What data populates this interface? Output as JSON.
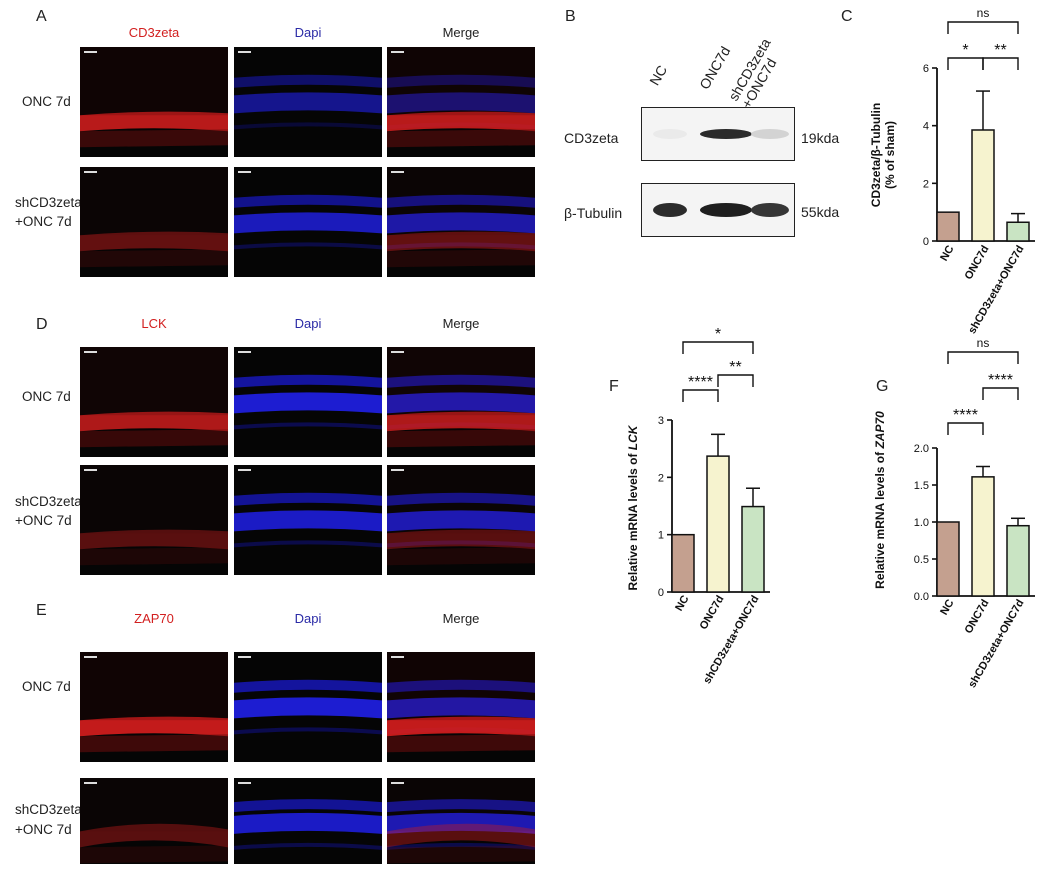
{
  "panels": {
    "A": "A",
    "B": "B",
    "C": "C",
    "D": "D",
    "E": "E",
    "F": "F",
    "G": "G"
  },
  "if_panels": [
    {
      "id": "A",
      "stain": "CD3zeta",
      "dapi": "Dapi",
      "merge": "Merge",
      "rows": [
        {
          "label1": "ONC 7d",
          "label2": "",
          "red_level": 0.85,
          "blue_level": 0.6
        },
        {
          "label1": "shCD3zeta",
          "label2": "+ONC 7d",
          "red_level": 0.45,
          "blue_level": 0.8
        }
      ]
    },
    {
      "id": "D",
      "stain": "LCK",
      "dapi": "Dapi",
      "merge": "Merge",
      "rows": [
        {
          "label1": "ONC 7d",
          "label2": "",
          "red_level": 0.8,
          "blue_level": 0.9
        },
        {
          "label1": "shCD3zeta",
          "label2": "+ONC 7d",
          "red_level": 0.4,
          "blue_level": 0.85
        }
      ]
    },
    {
      "id": "E",
      "stain": "ZAP70",
      "dapi": "Dapi",
      "merge": "Merge",
      "rows": [
        {
          "label1": "ONC 7d",
          "label2": "",
          "red_level": 0.9,
          "blue_level": 0.9
        },
        {
          "label1": "shCD3zeta",
          "label2": "+ONC 7d",
          "red_level": 0.4,
          "blue_level": 0.85
        }
      ]
    }
  ],
  "blot": {
    "lanes": [
      "NC",
      "ONC7d",
      "shCD3zeta",
      "+ONC7d"
    ],
    "bands": [
      {
        "protein": "CD3zeta",
        "size": "19kda",
        "intensities": [
          0.05,
          0.9,
          0.15
        ]
      },
      {
        "protein": "β-Tubulin",
        "size": "55kda",
        "intensities": [
          0.9,
          0.95,
          0.85
        ]
      }
    ]
  },
  "colors": {
    "nc": "#c4a08f",
    "onc": "#f6f3cf",
    "sh": "#c9e4c3",
    "red_stain": "#d21f1f",
    "dapi_blue": "#2a2aa6"
  },
  "chart_data": [
    {
      "id": "C",
      "type": "bar",
      "categories": [
        "NC",
        "ONC7d",
        "shCD3zeta+ONC7d"
      ],
      "values": [
        1.0,
        3.85,
        0.65
      ],
      "errors": [
        0,
        1.35,
        0.3
      ],
      "ylabel1": "CD3zeta/β-Tubulin",
      "ylabel2": "(% of sham)",
      "ylim": [
        0,
        6
      ],
      "yticks": [
        "0",
        "2",
        "4",
        "6"
      ],
      "significance": [
        {
          "label": "*",
          "from": 0,
          "to": 1
        },
        {
          "label": "**",
          "from": 1,
          "to": 2
        },
        {
          "label": "ns",
          "from": 0,
          "to": 2
        }
      ]
    },
    {
      "id": "F",
      "type": "bar",
      "categories": [
        "NC",
        "ONC7d",
        "shCD3zeta+ONC7d"
      ],
      "values": [
        1.0,
        2.37,
        1.49
      ],
      "errors": [
        0,
        0.38,
        0.32
      ],
      "ylabel_prefix": "Relative mRNA levels of ",
      "ylabel_gene": "LCK",
      "ylim": [
        0,
        3
      ],
      "yticks": [
        "0",
        "1",
        "2",
        "3"
      ],
      "significance": [
        {
          "label": "****",
          "from": 0,
          "to": 1
        },
        {
          "label": "**",
          "from": 1,
          "to": 2
        },
        {
          "label": "*",
          "from": 0,
          "to": 2
        }
      ]
    },
    {
      "id": "G",
      "type": "bar",
      "categories": [
        "NC",
        "ONC7d",
        "shCD3zeta+ONC7d"
      ],
      "values": [
        1.0,
        1.61,
        0.95
      ],
      "errors": [
        0,
        0.14,
        0.1
      ],
      "ylabel_prefix": "Relative mRNA levels of ",
      "ylabel_gene": "ZAP70",
      "ylim": [
        0,
        2
      ],
      "yticks": [
        "0.0",
        "0.5",
        "1.0",
        "1.5",
        "2.0"
      ],
      "significance": [
        {
          "label": "****",
          "from": 0,
          "to": 1
        },
        {
          "label": "****",
          "from": 1,
          "to": 2
        },
        {
          "label": "ns",
          "from": 0,
          "to": 2
        }
      ]
    }
  ]
}
